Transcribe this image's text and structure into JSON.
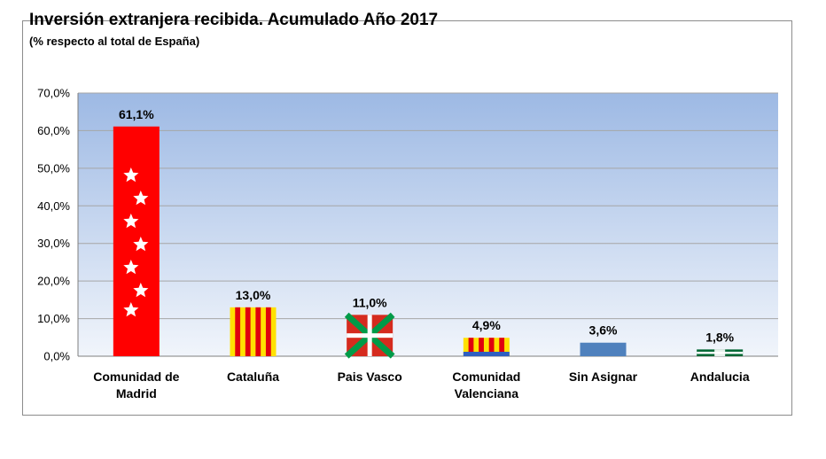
{
  "chart_data": {
    "type": "bar",
    "title": "Inversión extranjera recibida. Acumulado Año 2017",
    "subtitle": "(% respecto al total de España)",
    "categories": [
      [
        "Comunidad de",
        "Madrid"
      ],
      [
        "Cataluña"
      ],
      [
        "Pais Vasco"
      ],
      [
        "Comunidad",
        "Valenciana"
      ],
      [
        "Sin Asignar"
      ],
      [
        "Andalucia"
      ]
    ],
    "values": [
      61.1,
      13.0,
      11.0,
      4.9,
      3.6,
      1.8
    ],
    "data_labels": [
      "61,1%",
      "13,0%",
      "11,0%",
      "4,9%",
      "3,6%",
      "1,8%"
    ],
    "y_ticks": [
      "0,0%",
      "10,0%",
      "20,0%",
      "30,0%",
      "40,0%",
      "50,0%",
      "60,0%",
      "70,0%"
    ],
    "ylim": [
      0,
      70
    ],
    "grid": true,
    "bar_styles": [
      "flag-madrid",
      "flag-cataluna",
      "flag-pais-vasco",
      "flag-valencia",
      "plain",
      "flag-andalucia"
    ],
    "colors": {
      "plot_top": "#9db9e4",
      "plot_bottom": "#f1f5fb",
      "madrid_red": "#ff0000",
      "catalan_yellow": "#ffe100",
      "catalan_red": "#e0000e",
      "basque_red": "#d52b1e",
      "basque_green": "#009b48",
      "valencia_blue": "#2f5fc0",
      "plain_bar": "#4f81bd",
      "andalucia_green": "#006633",
      "gridline": "#a6a6a6"
    }
  }
}
